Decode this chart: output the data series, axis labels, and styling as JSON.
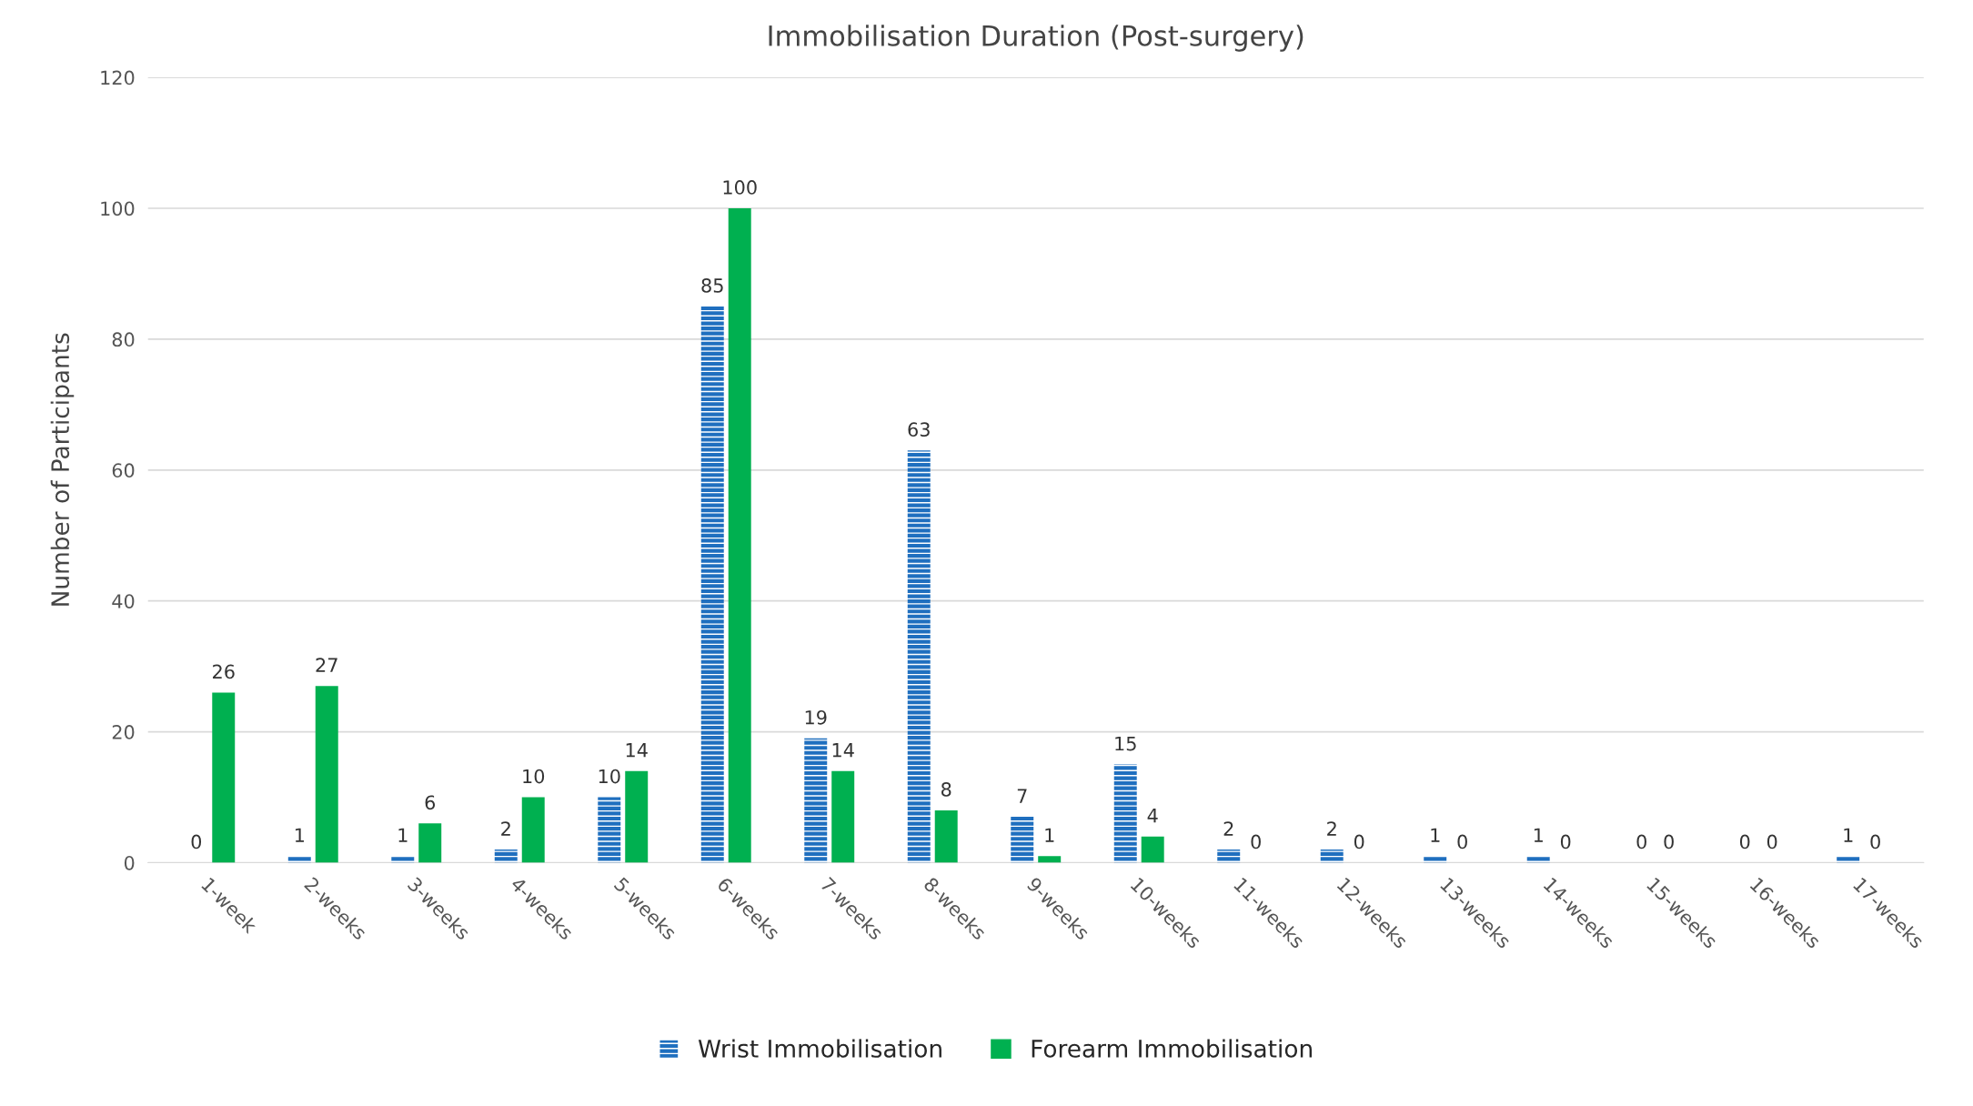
{
  "chart_data": {
    "type": "bar",
    "title": "Immobilisation Duration (Post-surgery)",
    "ylabel": "Number of Participants",
    "categories": [
      "1-week",
      "2-weeks",
      "3-weeks",
      "4-weeks",
      "5-weeks",
      "6-weeks",
      "7-weeks",
      "8-weeks",
      "9-weeks",
      "10-weeks",
      "11-weeks",
      "12-weeks",
      "13-weeks",
      "14-weeks",
      "15-weeks",
      "16-weeks",
      "17-weeks"
    ],
    "series": [
      {
        "name": "Wrist Immobilisation",
        "color": "#1f6fbf",
        "values": [
          0,
          1,
          1,
          2,
          10,
          85,
          19,
          63,
          7,
          15,
          2,
          2,
          1,
          1,
          0,
          0,
          1
        ]
      },
      {
        "name": "Forearm Immobilisation",
        "color": "#00b050",
        "values": [
          26,
          27,
          6,
          10,
          14,
          100,
          14,
          8,
          1,
          4,
          0,
          0,
          0,
          0,
          0,
          0,
          0
        ]
      }
    ],
    "ylim": [
      0,
      120
    ],
    "yticks": [
      0,
      20,
      40,
      60,
      80,
      100,
      120
    ],
    "grid": "y",
    "legend": "bottom",
    "data_labels": true
  }
}
